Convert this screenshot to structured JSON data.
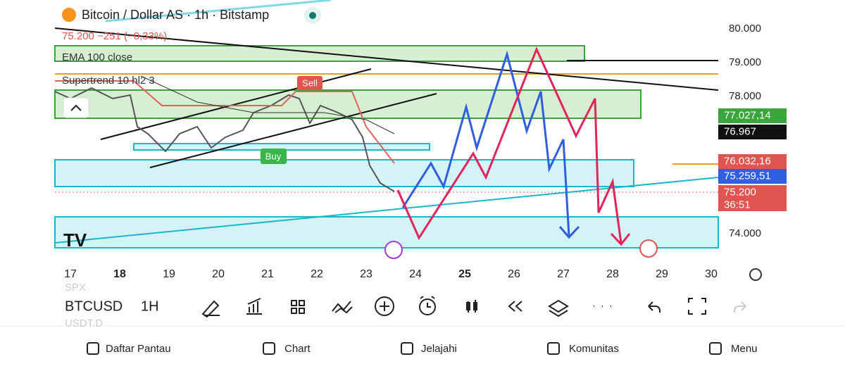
{
  "header": {
    "symbol_title": "Bitcoin / Dollar AS · 1h · Bitstamp",
    "price_change": "75.200  −251 (−0,33%)"
  },
  "indicators": [
    "EMA 100 close",
    "Supertrend 10 hl2 3"
  ],
  "signals": {
    "buy": "Buy",
    "sell": "Sell"
  },
  "price_axis": [
    "80.000",
    "79.000",
    "78.000",
    "74.000"
  ],
  "price_badges": [
    "77.027,14",
    "76.967",
    "76.032,16",
    "75.259,51",
    "75.200",
    "36:51"
  ],
  "date_axis": [
    "17",
    "18",
    "19",
    "20",
    "21",
    "22",
    "23",
    "24",
    "25",
    "26",
    "27",
    "28",
    "29",
    "30"
  ],
  "watchlist_ghost": [
    "SPX",
    "USDT.D"
  ],
  "toolbar": {
    "symbol": "BTCUSD",
    "interval": "1H"
  },
  "nav": [
    "Daftar Pantau",
    "Chart",
    "Jelajahi",
    "Komunitas",
    "Menu"
  ]
}
